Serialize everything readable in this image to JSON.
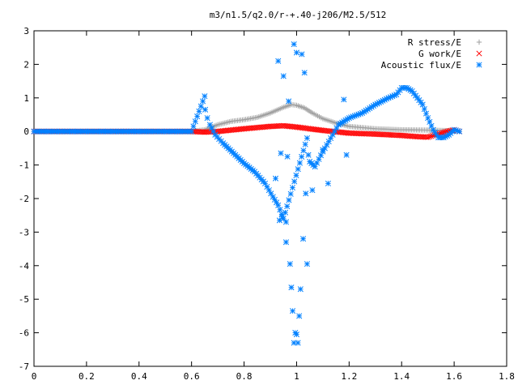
{
  "chart_data": {
    "type": "scatter",
    "title": "m3/n1.5/q2.0/r-+.40-j206/M2.5/512",
    "xlabel": "",
    "ylabel": "",
    "xlim": [
      0,
      1.8
    ],
    "ylim": [
      -7,
      3
    ],
    "x_ticks": [
      "0",
      "0.2",
      "0.4",
      "0.6",
      "0.8",
      "1",
      "1.2",
      "1.4",
      "1.6",
      "1.8"
    ],
    "y_ticks": [
      "3",
      "2",
      "1",
      "0",
      "-1",
      "-2",
      "-3",
      "-4",
      "-5",
      "-6",
      "-7"
    ],
    "grid": false,
    "legend_position": "top-right",
    "series": [
      {
        "name": "R stress/E",
        "marker": "+",
        "color": "#a0a0a0",
        "x": [
          0.0,
          0.6,
          0.65,
          0.7,
          0.75,
          0.8,
          0.85,
          0.9,
          0.95,
          0.98,
          1.0,
          1.03,
          1.06,
          1.1,
          1.15,
          1.2,
          1.3,
          1.4,
          1.5,
          1.55,
          1.6,
          1.62
        ],
        "y": [
          0.0,
          0.0,
          0.05,
          0.2,
          0.3,
          0.35,
          0.42,
          0.55,
          0.72,
          0.8,
          0.78,
          0.7,
          0.55,
          0.38,
          0.25,
          0.15,
          0.08,
          0.05,
          0.04,
          0.03,
          0.02,
          0.0
        ]
      },
      {
        "name": "G work/E",
        "marker": "x",
        "color": "#ff0000",
        "x": [
          0.0,
          0.6,
          0.65,
          0.7,
          0.8,
          0.9,
          0.95,
          1.0,
          1.05,
          1.1,
          1.2,
          1.3,
          1.4,
          1.45,
          1.5,
          1.55,
          1.6,
          1.62
        ],
        "y": [
          0.0,
          0.0,
          -0.02,
          0.0,
          0.08,
          0.15,
          0.17,
          0.13,
          0.08,
          0.03,
          -0.05,
          -0.08,
          -0.12,
          -0.15,
          -0.17,
          -0.05,
          0.05,
          0.0
        ]
      },
      {
        "name": "Acoustic flux/E",
        "marker": "*",
        "color": "#0080ff",
        "x": [
          0.0,
          0.6,
          0.65,
          0.652,
          0.66,
          0.67,
          0.69,
          0.72,
          0.76,
          0.8,
          0.84,
          0.88,
          0.91,
          0.93,
          0.95,
          1.04,
          1.05,
          1.07,
          1.1,
          1.13,
          1.16,
          1.2,
          1.25,
          1.3,
          1.35,
          1.38,
          1.4,
          1.42,
          1.44,
          1.46,
          1.48,
          1.5,
          1.52,
          1.54,
          1.56,
          1.58,
          1.6,
          1.62,
          0.93,
          0.95,
          0.97,
          0.99,
          1.0,
          1.02,
          1.03,
          0.92,
          0.94,
          0.96,
          0.98,
          1.01,
          1.04,
          1.06,
          1.1,
          1.12,
          1.18
        ],
        "y": [
          0.0,
          0.0,
          1.05,
          0.65,
          0.4,
          0.2,
          -0.1,
          -0.35,
          -0.65,
          -0.95,
          -1.2,
          -1.55,
          -1.95,
          -2.2,
          -2.6,
          -0.2,
          -0.9,
          -1.05,
          -0.6,
          -0.2,
          0.2,
          0.4,
          0.55,
          0.8,
          1.0,
          1.1,
          1.3,
          1.3,
          1.2,
          1.0,
          0.8,
          0.4,
          0.05,
          -0.18,
          -0.18,
          -0.1,
          0.05,
          0.0,
          2.1,
          1.65,
          0.9,
          2.6,
          2.35,
          2.3,
          1.75,
          -1.4,
          -0.65,
          -3.3,
          -4.65,
          -5.5,
          -3.95,
          -1.75,
          -0.55,
          -1.55,
          0.95
        ]
      }
    ],
    "extra_points": {
      "note_free": "",
      "x": [
        0.935,
        0.96,
        0.975,
        0.985,
        0.995,
        1.005,
        1.015,
        1.025,
        1.035,
        1.045,
        0.945,
        0.965,
        0.99,
        1.0,
        1.19
      ],
      "y": [
        -2.65,
        -2.7,
        -3.95,
        -5.35,
        -6.0,
        -6.3,
        -4.7,
        -3.2,
        -1.85,
        -0.7,
        -2.55,
        -0.75,
        -6.3,
        -6.05,
        -0.7
      ]
    }
  }
}
